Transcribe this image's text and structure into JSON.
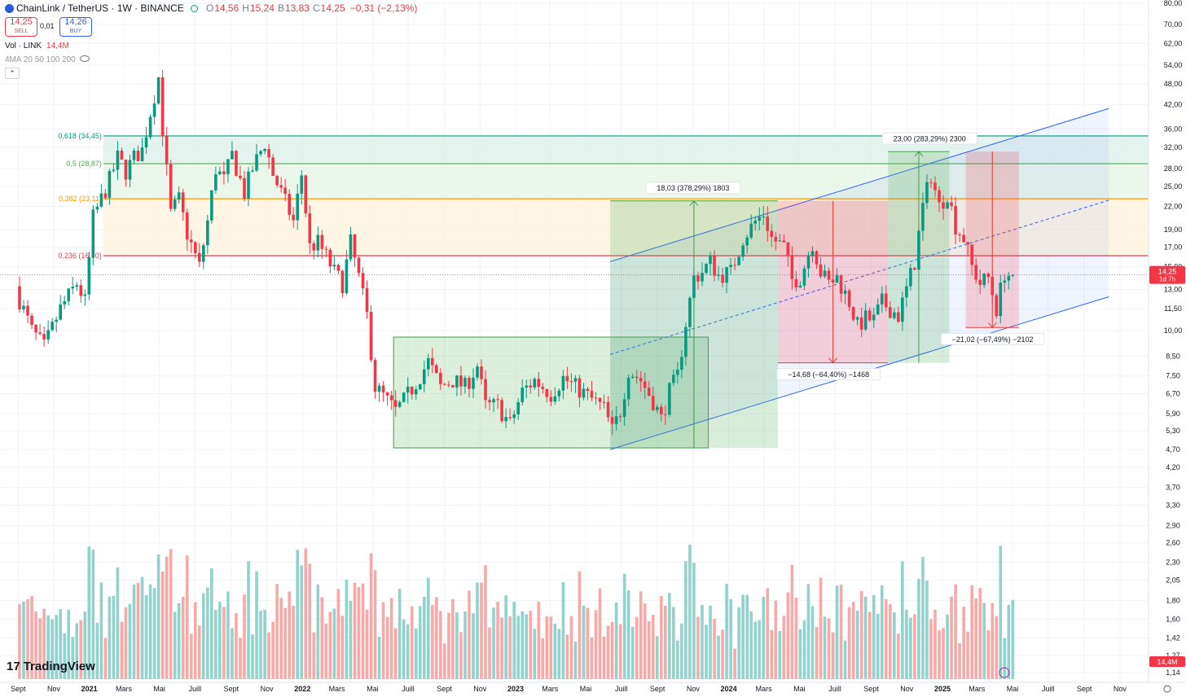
{
  "header": {
    "symbol": "ChainLink / TetherUS · 1W · BINANCE",
    "o_label": "O",
    "o_value": "14,56",
    "h_label": "H",
    "h_value": "15,24",
    "l_label": "B",
    "l_value": "13,83",
    "c_label": "C",
    "c_value": "14,25",
    "change": "−0,31 (−2,13%)"
  },
  "trade": {
    "sell_price": "14,25",
    "sell_label": "SELL",
    "spread": "0,01",
    "buy_price": "14,26",
    "buy_label": "BUY"
  },
  "volume_legend": {
    "label": "Vol · LINK",
    "value": "14,4M"
  },
  "ma_legend": "4MA 20 50 100 200",
  "collapse_glyph": "⌃",
  "brand": {
    "mark": "17",
    "name": "TradingView"
  },
  "colors": {
    "up": "#089981",
    "down": "#f23645",
    "vol_up": "#92d2cc",
    "vol_down": "#f7a9a7",
    "channel": "#2962ff",
    "fib_green": "#089981",
    "fib_lime": "#4caf50",
    "fib_orange": "#ff9800",
    "fib_red": "#f23645"
  },
  "chart_data": {
    "type": "candlestick",
    "price_scale": "log",
    "ylim": [
      1.14,
      80
    ],
    "y_ticks": [
      "80,00",
      "70,00",
      "62,00",
      "54,00",
      "48,00",
      "42,00",
      "36,00",
      "32,00",
      "28,00",
      "25,00",
      "22,00",
      "19,00",
      "17,00",
      "15,00",
      "13,00",
      "11,50",
      "10,00",
      "8,50",
      "7,50",
      "6,70",
      "5,90",
      "5,30",
      "4,70",
      "4,20",
      "3,70",
      "3,30",
      "2,90",
      "2,60",
      "2,30",
      "2,05",
      "1,80",
      "1,60",
      "1,42",
      "1,27",
      "1,14"
    ],
    "x_ticks": [
      {
        "label": "Sept",
        "date": "2020-09-01",
        "bold": false
      },
      {
        "label": "Nov",
        "date": "2020-11-01",
        "bold": false
      },
      {
        "label": "2021",
        "date": "2021-01-01",
        "bold": true
      },
      {
        "label": "Mars",
        "date": "2021-03-01",
        "bold": false
      },
      {
        "label": "Mai",
        "date": "2021-05-01",
        "bold": false
      },
      {
        "label": "Juill",
        "date": "2021-07-01",
        "bold": false
      },
      {
        "label": "Sept",
        "date": "2021-09-01",
        "bold": false
      },
      {
        "label": "Nov",
        "date": "2021-11-01",
        "bold": false
      },
      {
        "label": "2022",
        "date": "2022-01-01",
        "bold": true
      },
      {
        "label": "Mars",
        "date": "2022-03-01",
        "bold": false
      },
      {
        "label": "Mai",
        "date": "2022-05-01",
        "bold": false
      },
      {
        "label": "Juill",
        "date": "2022-07-01",
        "bold": false
      },
      {
        "label": "Sept",
        "date": "2022-09-01",
        "bold": false
      },
      {
        "label": "Nov",
        "date": "2022-11-01",
        "bold": false
      },
      {
        "label": "2023",
        "date": "2023-01-01",
        "bold": true
      },
      {
        "label": "Mars",
        "date": "2023-03-01",
        "bold": false
      },
      {
        "label": "Mai",
        "date": "2023-05-01",
        "bold": false
      },
      {
        "label": "Juill",
        "date": "2023-07-01",
        "bold": false
      },
      {
        "label": "Sept",
        "date": "2023-09-01",
        "bold": false
      },
      {
        "label": "Nov",
        "date": "2023-11-01",
        "bold": false
      },
      {
        "label": "2024",
        "date": "2024-01-01",
        "bold": true
      },
      {
        "label": "Mars",
        "date": "2024-03-01",
        "bold": false
      },
      {
        "label": "Mai",
        "date": "2024-05-01",
        "bold": false
      },
      {
        "label": "Juill",
        "date": "2024-07-01",
        "bold": false
      },
      {
        "label": "Sept",
        "date": "2024-09-01",
        "bold": false
      },
      {
        "label": "Nov",
        "date": "2024-11-01",
        "bold": false
      },
      {
        "label": "2025",
        "date": "2025-01-01",
        "bold": true
      },
      {
        "label": "Mars",
        "date": "2025-03-01",
        "bold": false
      },
      {
        "label": "Mai",
        "date": "2025-05-01",
        "bold": false
      },
      {
        "label": "Juill",
        "date": "2025-07-01",
        "bold": false
      },
      {
        "label": "Sept",
        "date": "2025-09-01",
        "bold": false
      },
      {
        "label": "Nov",
        "date": "2025-11-01",
        "bold": false
      }
    ],
    "price_path": [
      [
        "2020-08-31",
        13.0
      ],
      [
        "2020-09-28",
        10.0
      ],
      [
        "2020-10-19",
        9.0
      ],
      [
        "2020-11-16",
        11.5
      ],
      [
        "2020-12-14",
        13.5
      ],
      [
        "2020-12-28",
        12.0
      ],
      [
        "2021-01-11",
        20.5
      ],
      [
        "2021-02-08",
        26.0
      ],
      [
        "2021-02-22",
        30.0
      ],
      [
        "2021-03-08",
        27.5
      ],
      [
        "2021-03-22",
        30.0
      ],
      [
        "2021-04-05",
        31.5
      ],
      [
        "2021-04-19",
        40.0
      ],
      [
        "2021-05-03",
        50.0
      ],
      [
        "2021-05-10",
        36.0
      ],
      [
        "2021-05-24",
        21.0
      ],
      [
        "2021-06-07",
        23.0
      ],
      [
        "2021-06-21",
        18.5
      ],
      [
        "2021-07-12",
        15.0
      ],
      [
        "2021-07-26",
        20.0
      ],
      [
        "2021-08-09",
        28.0
      ],
      [
        "2021-08-23",
        26.0
      ],
      [
        "2021-09-06",
        30.5
      ],
      [
        "2021-09-27",
        24.0
      ],
      [
        "2021-10-11",
        28.0
      ],
      [
        "2021-11-01",
        33.0
      ],
      [
        "2021-11-15",
        27.0
      ],
      [
        "2021-11-29",
        24.0
      ],
      [
        "2021-12-20",
        20.0
      ],
      [
        "2022-01-03",
        27.0
      ],
      [
        "2022-01-17",
        17.0
      ],
      [
        "2022-01-31",
        17.5
      ],
      [
        "2022-02-14",
        16.0
      ],
      [
        "2022-02-28",
        14.5
      ],
      [
        "2022-03-14",
        13.5
      ],
      [
        "2022-03-28",
        17.5
      ],
      [
        "2022-04-11",
        14.0
      ],
      [
        "2022-04-25",
        11.0
      ],
      [
        "2022-05-09",
        7.0
      ],
      [
        "2022-05-23",
        6.6
      ],
      [
        "2022-06-13",
        6.0
      ],
      [
        "2022-06-27",
        6.4
      ],
      [
        "2022-07-18",
        7.2
      ],
      [
        "2022-08-08",
        8.2
      ],
      [
        "2022-08-29",
        7.0
      ],
      [
        "2022-09-19",
        7.3
      ],
      [
        "2022-10-10",
        7.0
      ],
      [
        "2022-10-31",
        8.0
      ],
      [
        "2022-11-14",
        6.2
      ],
      [
        "2022-12-05",
        6.2
      ],
      [
        "2022-12-26",
        5.5
      ],
      [
        "2023-01-16",
        6.8
      ],
      [
        "2023-02-06",
        7.3
      ],
      [
        "2023-03-06",
        6.7
      ],
      [
        "2023-03-27",
        7.4
      ],
      [
        "2023-04-17",
        7.0
      ],
      [
        "2023-05-08",
        6.6
      ],
      [
        "2023-06-05",
        6.1
      ],
      [
        "2023-06-19",
        5.3
      ],
      [
        "2023-07-03",
        6.0
      ],
      [
        "2023-07-17",
        7.8
      ],
      [
        "2023-08-07",
        7.3
      ],
      [
        "2023-08-28",
        6.4
      ],
      [
        "2023-09-11",
        5.7
      ],
      [
        "2023-09-25",
        6.8
      ],
      [
        "2023-10-09",
        7.5
      ],
      [
        "2023-10-23",
        10.5
      ],
      [
        "2023-11-06",
        14.0
      ],
      [
        "2023-11-20",
        14.5
      ],
      [
        "2023-12-04",
        15.5
      ],
      [
        "2023-12-18",
        14.2
      ],
      [
        "2024-01-08",
        14.5
      ],
      [
        "2024-01-29",
        18.0
      ],
      [
        "2024-02-19",
        20.0
      ],
      [
        "2024-03-04",
        21.0
      ],
      [
        "2024-03-18",
        18.0
      ],
      [
        "2024-04-08",
        17.0
      ],
      [
        "2024-04-22",
        13.8
      ],
      [
        "2024-05-06",
        14.0
      ],
      [
        "2024-05-27",
        17.5
      ],
      [
        "2024-06-10",
        14.5
      ],
      [
        "2024-06-24",
        13.5
      ],
      [
        "2024-07-08",
        14.0
      ],
      [
        "2024-07-29",
        12.0
      ],
      [
        "2024-08-12",
        10.3
      ],
      [
        "2024-08-26",
        10.8
      ],
      [
        "2024-09-09",
        10.7
      ],
      [
        "2024-09-23",
        12.0
      ],
      [
        "2024-10-07",
        11.5
      ],
      [
        "2024-10-21",
        11.0
      ],
      [
        "2024-11-04",
        13.0
      ],
      [
        "2024-11-18",
        15.5
      ],
      [
        "2024-12-02",
        22.0
      ],
      [
        "2024-12-16",
        27.0
      ],
      [
        "2024-12-30",
        22.0
      ],
      [
        "2025-01-13",
        24.0
      ],
      [
        "2025-01-27",
        19.5
      ],
      [
        "2025-02-10",
        18.0
      ],
      [
        "2025-02-24",
        15.0
      ],
      [
        "2025-03-10",
        13.5
      ],
      [
        "2025-03-24",
        14.0
      ],
      [
        "2025-04-07",
        11.5
      ],
      [
        "2025-04-21",
        14.5
      ],
      [
        "2025-04-28",
        14.25
      ]
    ],
    "last_price": 14.25,
    "last_price_label": "14,25",
    "countdown": "1d 7h",
    "fib_levels": [
      {
        "label": "0,618 (34,45)",
        "price": 34.45,
        "color": "#089981"
      },
      {
        "label": "0,5 (28,87)",
        "price": 28.87,
        "color": "#4caf50"
      },
      {
        "label": "0,382 (23,11)",
        "price": 23.11,
        "color": "#ff9800"
      },
      {
        "label": "0,236 (16,10)",
        "price": 16.1,
        "color": "#f23645"
      }
    ],
    "fib_start": "2021-01-25",
    "accumulation_box": {
      "from": "2022-06-06",
      "to": "2023-11-27",
      "low": 4.75,
      "high": 9.6
    },
    "channel": {
      "lower": [
        [
          "2023-06-12",
          4.7
        ],
        [
          "2025-10-13",
          12.4
        ]
      ],
      "upper": [
        [
          "2023-06-12",
          15.5
        ],
        [
          "2025-10-13",
          41.0
        ]
      ],
      "mid": [
        [
          "2023-06-12",
          8.6
        ],
        [
          "2025-10-13",
          22.9
        ]
      ],
      "extend_to": "2025-10-13"
    },
    "measurements": [
      {
        "kind": "up",
        "from": "2023-06-12",
        "to": "2024-03-25",
        "low": 4.75,
        "high": 22.8,
        "label": "18,03 (378,29%) 1803",
        "label_date": "2023-11-01"
      },
      {
        "kind": "down",
        "from": "2024-03-25",
        "to": "2024-09-30",
        "low": 8.15,
        "high": 22.8,
        "label": "−14,68 (−64,40%) −1468",
        "label_date": "2024-06-20"
      },
      {
        "kind": "up",
        "from": "2024-09-30",
        "to": "2025-01-13",
        "low": 8.15,
        "high": 31.2,
        "label": "23,00 (283,29%) 2300",
        "label_date": "2024-12-10"
      },
      {
        "kind": "down",
        "from": "2025-02-10",
        "to": "2025-05-12",
        "low": 10.2,
        "high": 31.2,
        "label": "−21,02 (−67,49%) −2102",
        "label_date": "2025-03-28"
      }
    ],
    "volume_range": [
      0,
      1.7
    ],
    "volume_last_label": "14,4M"
  }
}
